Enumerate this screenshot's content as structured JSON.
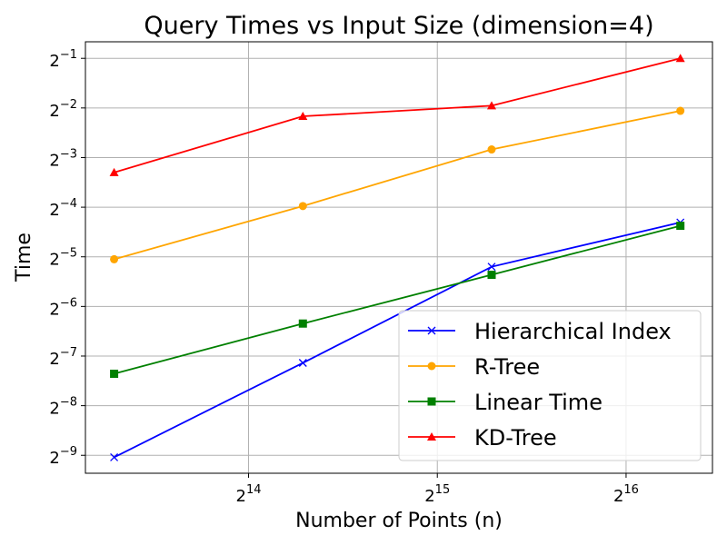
{
  "chart_data": {
    "type": "line",
    "title": "Query Times vs Input Size (dimension=4)",
    "xlabel": "Number of Points (n)",
    "ylabel": "Time",
    "x_scale": "log2",
    "y_scale": "log2",
    "x": [
      10000,
      20000,
      40000,
      80000
    ],
    "xlim": [
      9000,
      90000
    ],
    "ylim": [
      0.00152,
      0.63
    ],
    "x_ticks": [
      16384,
      32768,
      65536
    ],
    "y_ticks": [
      0.001953125,
      0.00390625,
      0.0078125,
      0.015625,
      0.03125,
      0.0625,
      0.125,
      0.25,
      0.5
    ],
    "grid": true,
    "legend_position": "lower-right",
    "series": [
      {
        "name": "Hierarchical Index",
        "color": "#0000ff",
        "marker": "x",
        "values": [
          0.0019,
          0.0071,
          0.0272,
          0.0505
        ]
      },
      {
        "name": "R-Tree",
        "color": "#ffa500",
        "marker": "circle",
        "values": [
          0.0302,
          0.0635,
          0.14,
          0.24
        ]
      },
      {
        "name": "Linear Time",
        "color": "#008000",
        "marker": "square",
        "values": [
          0.0061,
          0.0123,
          0.0243,
          0.0482
        ]
      },
      {
        "name": "KD-Tree",
        "color": "#ff0000",
        "marker": "triangle",
        "values": [
          0.1015,
          0.2225,
          0.258,
          0.5
        ]
      }
    ]
  }
}
